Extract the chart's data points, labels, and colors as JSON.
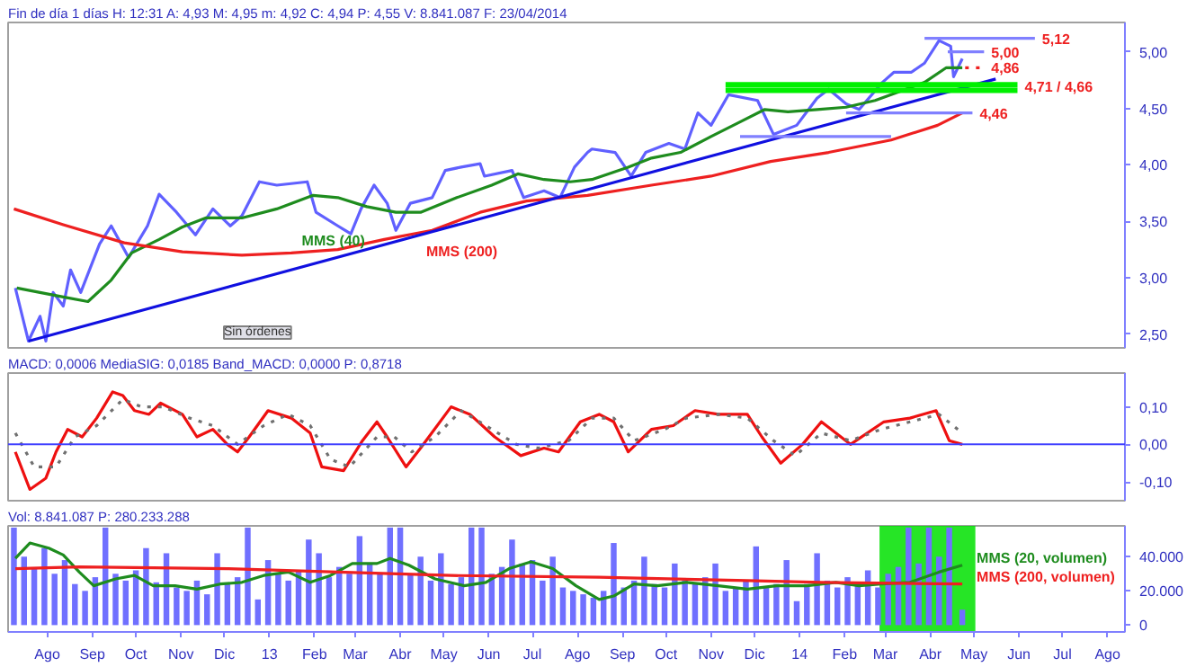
{
  "chart_data": [
    {
      "type": "line",
      "title": "Fin de día 1 días H: 12:31 A: 4,93 M: 4,95 m: 4,92 C: 4,94 P: 4,55 V: 8.841.087 F: 23/04/2014",
      "tick_labels": "y",
      "xlim": [
        "2012-07-05",
        "2014-08-13"
      ],
      "ylim": [
        2.38,
        5.26
      ],
      "yticks": [
        {
          "value": 2.5,
          "label": "2,50"
        },
        {
          "value": 3,
          "label": "3,00"
        },
        {
          "value": 3.5,
          "label": "3,50"
        },
        {
          "value": 4,
          "label": "4,00"
        },
        {
          "value": 4.5,
          "label": "4,50"
        },
        {
          "value": 5,
          "label": "5,00"
        }
      ],
      "series": [
        {
          "color": "#6060ff",
          "x": [
            "2012-07-10",
            "2012-07-19",
            "2012-07-27",
            "2012-07-31",
            "2012-08-05",
            "2012-08-12",
            "2012-08-17",
            "2012-08-24",
            "2012-09-06",
            "2012-09-14",
            "2012-09-26",
            "2012-10-09",
            "2012-10-17",
            "2012-10-29",
            "2012-11-11",
            "2012-11-23",
            "2012-12-05",
            "2012-12-13",
            "2012-12-25",
            "2013-01-06",
            "2013-01-27",
            "2013-02-02",
            "2013-02-17",
            "2013-02-26",
            "2013-03-05",
            "2013-03-14",
            "2013-03-23",
            "2013-03-29",
            "2013-04-08",
            "2013-04-23",
            "2013-05-02",
            "2013-05-13",
            "2013-05-26",
            "2013-05-29",
            "2013-06-17",
            "2013-06-25",
            "2013-07-09",
            "2013-07-20",
            "2013-07-30",
            "2013-08-08",
            "2013-08-11",
            "2013-08-27",
            "2013-09-07",
            "2013-09-17",
            "2013-10-03",
            "2013-10-14",
            "2013-10-23",
            "2013-11-01",
            "2013-11-13",
            "2013-12-03",
            "2013-12-14",
            "2013-12-30",
            "2014-01-13",
            "2014-01-21",
            "2014-02-02",
            "2014-02-11",
            "2014-02-27",
            "2014-03-07",
            "2014-03-19",
            "2014-03-28",
            "2014-04-07",
            "2014-04-15",
            "2014-04-17",
            "2014-04-23"
          ],
          "values": [
            2.91,
            2.44,
            2.66,
            2.44,
            2.87,
            2.75,
            3.07,
            2.87,
            3.3,
            3.46,
            3.18,
            3.46,
            3.74,
            3.58,
            3.38,
            3.61,
            3.46,
            3.55,
            3.85,
            3.82,
            3.85,
            3.58,
            3.46,
            3.39,
            3.61,
            3.82,
            3.66,
            3.42,
            3.66,
            3.71,
            3.95,
            3.98,
            4.01,
            3.9,
            3.95,
            3.71,
            3.77,
            3.71,
            3.98,
            4.11,
            4.14,
            4.11,
            3.9,
            4.11,
            4.19,
            4.14,
            4.46,
            4.35,
            4.62,
            4.57,
            4.27,
            4.35,
            4.59,
            4.67,
            4.54,
            4.49,
            4.73,
            4.82,
            4.82,
            4.9,
            5.1,
            5.05,
            4.78,
            4.94
          ]
        },
        {
          "name": "MMS (40)",
          "color": "#1e8c1e",
          "x": [
            "2012-07-11",
            "2012-07-27",
            "2012-08-12",
            "2012-08-29",
            "2012-09-14",
            "2012-09-28",
            "2012-10-17",
            "2012-11-02",
            "2012-11-18",
            "2012-12-13",
            "2013-01-06",
            "2013-01-31",
            "2013-02-17",
            "2013-03-09",
            "2013-03-29",
            "2013-04-15",
            "2013-05-10",
            "2013-06-03",
            "2013-06-21",
            "2013-07-09",
            "2013-07-27",
            "2013-08-11",
            "2013-09-05",
            "2013-09-21",
            "2013-10-11",
            "2013-11-01",
            "2013-11-21",
            "2013-12-08",
            "2013-12-24",
            "2014-01-13",
            "2014-02-02",
            "2014-02-22",
            "2014-03-11",
            "2014-03-28",
            "2014-04-12",
            "2014-04-23"
          ],
          "values": [
            2.91,
            2.87,
            2.83,
            2.79,
            2.98,
            3.22,
            3.34,
            3.45,
            3.53,
            3.53,
            3.61,
            3.73,
            3.71,
            3.63,
            3.58,
            3.58,
            3.71,
            3.82,
            3.92,
            3.87,
            3.85,
            3.87,
            3.98,
            4.06,
            4.11,
            4.25,
            4.38,
            4.49,
            4.47,
            4.49,
            4.51,
            4.57,
            4.65,
            4.73,
            4.86,
            4.86
          ]
        },
        {
          "name": "MMS (200)",
          "color": "#ee2020",
          "x": [
            "2012-07-09",
            "2012-08-12",
            "2012-09-23",
            "2012-11-02",
            "2012-12-13",
            "2013-01-16",
            "2013-02-17",
            "2013-03-21",
            "2013-04-23",
            "2013-05-26",
            "2013-06-27",
            "2013-08-08",
            "2013-09-21",
            "2013-11-01",
            "2013-12-12",
            "2014-01-21",
            "2014-03-05",
            "2014-04-06",
            "2014-04-23"
          ],
          "values": [
            3.61,
            3.47,
            3.31,
            3.23,
            3.2,
            3.22,
            3.25,
            3.34,
            3.42,
            3.58,
            3.68,
            3.73,
            3.82,
            3.9,
            4.03,
            4.11,
            4.22,
            4.35,
            4.46
          ]
        },
        {
          "color": "#1010e0",
          "x": [
            "2012-07-19",
            "2014-05-16"
          ],
          "values": [
            2.44,
            4.76
          ]
        },
        {
          "color": "#00f000",
          "x": [
            "2013-11-11",
            "2014-05-31"
          ],
          "values": [
            4.71,
            4.71
          ]
        },
        {
          "color": "#00f000",
          "x": [
            "2013-11-11",
            "2014-05-31"
          ],
          "values": [
            4.66,
            4.66
          ]
        },
        {
          "color": "#8080ff",
          "x": [
            "2014-03-28",
            "2014-06-12"
          ],
          "values": [
            5.12,
            5.12
          ]
        },
        {
          "color": "#8080ff",
          "x": [
            "2014-04-13",
            "2014-05-08"
          ],
          "values": [
            5.0,
            5.0
          ]
        },
        {
          "color": "#ee2020",
          "line_style": "dotted",
          "x": [
            "2014-04-25",
            "2014-05-08"
          ],
          "values": [
            4.86,
            4.86
          ]
        },
        {
          "color": "#8080ff",
          "x": [
            "2014-02-02",
            "2014-04-30"
          ],
          "values": [
            4.46,
            4.46
          ]
        },
        {
          "color": "#8080ff",
          "x": [
            "2013-11-21",
            "2014-03-05"
          ],
          "values": [
            4.25,
            4.25
          ]
        }
      ],
      "annotations": [
        {
          "text": "5,12",
          "x": "2014-06-12",
          "y": 5.12
        },
        {
          "text": "5,00",
          "x": "2014-05-08",
          "y": 5.0
        },
        {
          "text": "4,86",
          "x": "2014-05-08",
          "y": 4.86
        },
        {
          "text": "4,71 / 4,66",
          "x": "2014-05-31",
          "y": 4.685
        },
        {
          "text": "4,46",
          "x": "2014-04-30",
          "y": 4.46
        },
        "Sin órdenes"
      ]
    },
    {
      "type": "line",
      "title": "MACD: 0,0006 MediaSIG: 0,0185 Band_MACD: 0,0000 P: 0,8718",
      "tick_labels": "y",
      "xlim": [
        "2012-07-05",
        "2014-08-13"
      ],
      "ylim": [
        -0.15,
        0.19
      ],
      "yticks": [
        {
          "value": -0.1,
          "label": "-0,10"
        },
        {
          "value": 0,
          "label": "0,00"
        },
        {
          "value": 0.1,
          "label": "0,10"
        }
      ],
      "ref_lines": [
        {
          "axis": "y",
          "value": 0,
          "color": "#4040ff"
        }
      ],
      "series": [
        {
          "color": "#ee1010",
          "x": [
            "2012-07-10",
            "2012-07-20",
            "2012-07-31",
            "2012-08-07",
            "2012-08-15",
            "2012-08-25",
            "2012-09-04",
            "2012-09-15",
            "2012-09-22",
            "2012-09-30",
            "2012-10-10",
            "2012-10-18",
            "2012-11-02",
            "2012-11-12",
            "2012-11-23",
            "2012-12-03",
            "2012-12-10",
            "2012-12-18",
            "2012-12-31",
            "2013-01-16",
            "2013-01-29",
            "2013-02-06",
            "2013-02-21",
            "2013-03-06",
            "2013-03-16",
            "2013-03-23",
            "2013-04-05",
            "2013-04-15",
            "2013-05-06",
            "2013-05-19",
            "2013-06-05",
            "2013-06-23",
            "2013-07-09",
            "2013-07-19",
            "2013-08-03",
            "2013-08-16",
            "2013-08-26",
            "2013-09-05",
            "2013-09-21",
            "2013-10-06",
            "2013-10-21",
            "2013-11-06",
            "2013-11-26",
            "2013-12-06",
            "2013-12-19",
            "2014-01-03",
            "2014-01-16",
            "2014-02-05",
            "2014-02-28",
            "2014-03-18",
            "2014-04-05",
            "2014-04-14",
            "2014-04-23"
          ],
          "values": [
            -0.02,
            -0.12,
            -0.09,
            -0.02,
            0.04,
            0.02,
            0.07,
            0.14,
            0.13,
            0.09,
            0.08,
            0.11,
            0.08,
            0.02,
            0.04,
            0.0,
            -0.02,
            0.02,
            0.09,
            0.07,
            0.03,
            -0.06,
            -0.07,
            0.01,
            0.06,
            0.02,
            -0.06,
            -0.01,
            0.1,
            0.08,
            0.02,
            -0.03,
            -0.01,
            -0.02,
            0.06,
            0.08,
            0.06,
            -0.02,
            0.04,
            0.05,
            0.09,
            0.08,
            0.08,
            0.02,
            -0.05,
            0.0,
            0.06,
            0.0,
            0.06,
            0.07,
            0.09,
            0.01,
            0.0
          ]
        },
        {
          "color": "#707070",
          "line_style": "dotted",
          "x": [
            "2012-07-10",
            "2012-07-23",
            "2012-08-07",
            "2012-08-20",
            "2012-09-04",
            "2012-09-22",
            "2012-10-05",
            "2012-10-20",
            "2012-11-07",
            "2012-11-23",
            "2012-12-10",
            "2012-12-28",
            "2013-01-14",
            "2013-01-29",
            "2013-02-12",
            "2013-02-25",
            "2013-03-16",
            "2013-03-28",
            "2013-04-09",
            "2013-04-25",
            "2013-05-13",
            "2013-05-30",
            "2013-06-20",
            "2013-07-05",
            "2013-07-26",
            "2013-08-11",
            "2013-08-26",
            "2013-09-09",
            "2013-09-30",
            "2013-10-15",
            "2013-11-06",
            "2013-11-26",
            "2013-12-14",
            "2013-12-29",
            "2014-01-16",
            "2014-02-05",
            "2014-02-26",
            "2014-03-18",
            "2014-04-07",
            "2014-04-23"
          ],
          "values": [
            0.03,
            -0.06,
            -0.06,
            0.02,
            0.05,
            0.12,
            0.1,
            0.1,
            0.07,
            0.05,
            0.0,
            0.05,
            0.08,
            0.05,
            -0.04,
            -0.06,
            0.02,
            0.02,
            -0.02,
            0.02,
            0.09,
            0.05,
            0.0,
            -0.01,
            0.01,
            0.07,
            0.07,
            0.01,
            0.04,
            0.07,
            0.08,
            0.07,
            0.01,
            -0.03,
            0.03,
            0.01,
            0.04,
            0.06,
            0.08,
            0.03
          ]
        }
      ]
    },
    {
      "type": "bar",
      "title": "Vol: 8.841.087 P: 280.233.288",
      "xlim": [
        "2012-07-05",
        "2014-08-13"
      ],
      "ylim": [
        -4000,
        58000
      ],
      "xticks": [
        {
          "value": "2012-08-01",
          "label": "Ago"
        },
        {
          "value": "2012-09-01",
          "label": "Sep"
        },
        {
          "value": "2012-10-01",
          "label": "Oct"
        },
        {
          "value": "2012-11-01",
          "label": "Nov"
        },
        {
          "value": "2012-12-01",
          "label": "Dic"
        },
        {
          "value": "2013-01-01",
          "label": "13"
        },
        {
          "value": "2013-02-01",
          "label": "Feb"
        },
        {
          "value": "2013-03-01",
          "label": "Mar"
        },
        {
          "value": "2013-04-01",
          "label": "Abr"
        },
        {
          "value": "2013-05-01",
          "label": "May"
        },
        {
          "value": "2013-06-01",
          "label": "Jun"
        },
        {
          "value": "2013-07-01",
          "label": "Jul"
        },
        {
          "value": "2013-08-01",
          "label": "Ago"
        },
        {
          "value": "2013-09-01",
          "label": "Sep"
        },
        {
          "value": "2013-10-01",
          "label": "Oct"
        },
        {
          "value": "2013-11-01",
          "label": "Nov"
        },
        {
          "value": "2013-12-01",
          "label": "Dic"
        },
        {
          "value": "2014-01-01",
          "label": "14"
        },
        {
          "value": "2014-02-01",
          "label": "Feb"
        },
        {
          "value": "2014-03-01",
          "label": "Mar"
        },
        {
          "value": "2014-04-01",
          "label": "Abr"
        },
        {
          "value": "2014-05-01",
          "label": "May"
        },
        {
          "value": "2014-06-01",
          "label": "Jun"
        },
        {
          "value": "2014-07-01",
          "label": "Jul"
        },
        {
          "value": "2014-08-01",
          "label": "Ago"
        }
      ],
      "yticks": [
        {
          "value": 0,
          "label": "0"
        },
        {
          "value": 20000,
          "label": "20.000"
        },
        {
          "value": 40000,
          "label": "40.000"
        }
      ],
      "bands": [
        {
          "axis": "x",
          "from": "2014-02-25",
          "to": "2014-05-02",
          "color": "#00e000"
        }
      ],
      "series": [
        {
          "color": "#7070ff",
          "x": [
            "2012-07-09",
            "2012-07-16",
            "2012-07-23",
            "2012-07-30",
            "2012-08-06",
            "2012-08-13",
            "2012-08-20",
            "2012-08-27",
            "2012-09-03",
            "2012-09-10",
            "2012-09-17",
            "2012-09-24",
            "2012-10-01",
            "2012-10-08",
            "2012-10-15",
            "2012-10-22",
            "2012-10-29",
            "2012-11-05",
            "2012-11-12",
            "2012-11-19",
            "2012-11-26",
            "2012-12-03",
            "2012-12-10",
            "2012-12-17",
            "2012-12-24",
            "2012-12-31",
            "2013-01-07",
            "2013-01-14",
            "2013-01-21",
            "2013-01-28",
            "2013-02-04",
            "2013-02-11",
            "2013-02-18",
            "2013-02-25",
            "2013-03-04",
            "2013-03-11",
            "2013-03-18",
            "2013-03-25",
            "2013-04-01",
            "2013-04-08",
            "2013-04-15",
            "2013-04-22",
            "2013-04-29",
            "2013-05-06",
            "2013-05-13",
            "2013-05-20",
            "2013-05-27",
            "2013-06-03",
            "2013-06-10",
            "2013-06-17",
            "2013-06-24",
            "2013-07-01",
            "2013-07-08",
            "2013-07-15",
            "2013-07-22",
            "2013-07-29",
            "2013-08-05",
            "2013-08-12",
            "2013-08-19",
            "2013-08-26",
            "2013-09-02",
            "2013-09-09",
            "2013-09-16",
            "2013-09-23",
            "2013-09-30",
            "2013-10-07",
            "2013-10-14",
            "2013-10-21",
            "2013-10-28",
            "2013-11-04",
            "2013-11-11",
            "2013-11-18",
            "2013-11-25",
            "2013-12-02",
            "2013-12-09",
            "2013-12-16",
            "2013-12-23",
            "2013-12-30",
            "2014-01-06",
            "2014-01-13",
            "2014-01-20",
            "2014-01-27",
            "2014-02-03",
            "2014-02-10",
            "2014-02-17",
            "2014-02-24",
            "2014-03-03",
            "2014-03-10",
            "2014-03-17",
            "2014-03-24",
            "2014-03-31",
            "2014-04-07",
            "2014-04-14",
            "2014-04-23"
          ],
          "values": [
            57000,
            40000,
            33000,
            45000,
            30000,
            38000,
            24000,
            20000,
            28000,
            57000,
            30000,
            26000,
            32000,
            45000,
            25000,
            42000,
            22000,
            20000,
            26000,
            18000,
            42000,
            24000,
            28000,
            57000,
            15000,
            38000,
            30000,
            26000,
            32000,
            50000,
            42000,
            28000,
            34000,
            30000,
            52000,
            36000,
            30000,
            57000,
            57000,
            30000,
            40000,
            26000,
            42000,
            24000,
            28000,
            57000,
            57000,
            30000,
            34000,
            50000,
            36000,
            38000,
            26000,
            40000,
            22000,
            20000,
            18000,
            16000,
            20000,
            48000,
            22000,
            26000,
            40000,
            24000,
            22000,
            36000,
            26000,
            24000,
            28000,
            36000,
            20000,
            22000,
            26000,
            46000,
            22000,
            24000,
            38000,
            14000,
            24000,
            42000,
            26000,
            22000,
            28000,
            24000,
            32000,
            22000,
            30000,
            34000,
            57000,
            36000,
            57000,
            40000,
            57000,
            9000
          ]
        },
        {
          "type": "line",
          "name": "MMS (20, volumen)",
          "color": "#1e8c1e",
          "x": [
            "2012-07-10",
            "2012-07-20",
            "2012-08-02",
            "2012-08-12",
            "2012-08-23",
            "2012-09-02",
            "2012-09-17",
            "2012-09-30",
            "2012-10-13",
            "2012-10-28",
            "2012-11-12",
            "2012-11-28",
            "2012-12-13",
            "2012-12-28",
            "2013-01-14",
            "2013-01-29",
            "2013-02-12",
            "2013-02-27",
            "2013-03-16",
            "2013-03-25",
            "2013-04-07",
            "2013-04-25",
            "2013-05-15",
            "2013-05-30",
            "2013-06-15",
            "2013-06-30",
            "2013-07-15",
            "2013-07-31",
            "2013-08-16",
            "2013-08-26",
            "2013-09-09",
            "2013-09-25",
            "2013-10-15",
            "2013-11-06",
            "2013-11-26",
            "2013-12-16",
            "2014-01-06",
            "2014-01-26",
            "2014-02-11",
            "2014-02-26",
            "2014-03-18",
            "2014-04-07",
            "2014-04-23"
          ],
          "values": [
            39000,
            48000,
            45000,
            41000,
            31000,
            23000,
            27000,
            29000,
            23000,
            23000,
            21000,
            24000,
            25000,
            29000,
            31000,
            25000,
            29000,
            36000,
            36000,
            39000,
            35000,
            27000,
            23000,
            25000,
            33000,
            37000,
            33000,
            23000,
            15000,
            17000,
            24000,
            23000,
            25000,
            23000,
            21000,
            23000,
            23000,
            25000,
            23000,
            24000,
            25000,
            31000,
            35000
          ]
        },
        {
          "type": "line",
          "name": "MMS (200, volumen)",
          "color": "#ee2020",
          "x": [
            "2012-07-10",
            "2012-08-23",
            "2012-12-03",
            "2013-02-17",
            "2013-05-06",
            "2013-08-16",
            "2013-11-26",
            "2014-01-16",
            "2014-04-23"
          ],
          "values": [
            33000,
            34000,
            33000,
            31000,
            29000,
            28000,
            26000,
            25000,
            24000
          ]
        }
      ]
    }
  ]
}
